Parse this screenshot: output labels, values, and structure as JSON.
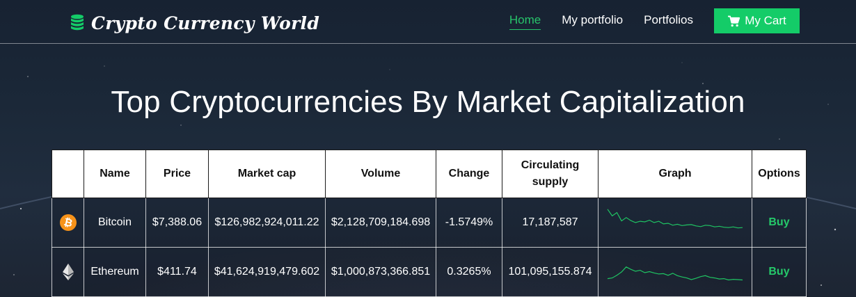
{
  "header": {
    "brand": "Crypto Currency World",
    "nav": [
      {
        "label": "Home",
        "active": true
      },
      {
        "label": "My portfolio",
        "active": false
      },
      {
        "label": "Portfolios",
        "active": false
      }
    ],
    "cart_label": "My Cart",
    "accent_color": "#14cc68"
  },
  "title": "Top Cryptocurrencies By Market Capitalization",
  "table": {
    "columns": [
      "",
      "Name",
      "Price",
      "Market cap",
      "Volume",
      "Change",
      "Circulating supply",
      "Graph",
      "Options"
    ],
    "rows": [
      {
        "icon": "bitcoin-icon",
        "name": "Bitcoin",
        "price": "$7,388.06",
        "market_cap": "$126,982,924,011.22",
        "volume": "$2,128,709,184.698",
        "change": "-1.5749%",
        "change_direction": "negative",
        "supply": "17,187,587",
        "spark": [
          9,
          7,
          8,
          5.5,
          6.5,
          5.6,
          5,
          5.4,
          5.2,
          5.7,
          5,
          5.4,
          4.6,
          4.8,
          4.2,
          4.5,
          4.1,
          4.3,
          4.4,
          4,
          3.8,
          4.2,
          4.1,
          3.7,
          3.9,
          3.6,
          3.5,
          3.7,
          3.4,
          3.5
        ],
        "action": "Buy"
      },
      {
        "icon": "ethereum-icon",
        "name": "Ethereum",
        "price": "$411.74",
        "market_cap": "$41,624,919,479.602",
        "volume": "$1,000,873,366.851",
        "change": "0.3265%",
        "change_direction": "positive",
        "supply": "101,095,155.874",
        "spark": [
          3,
          3.2,
          4,
          5,
          6.5,
          5.8,
          5.2,
          5.5,
          4.8,
          5.1,
          4.7,
          4.4,
          4.5,
          4,
          4.6,
          3.9,
          3.5,
          3.2,
          2.7,
          3.1,
          3.6,
          3.9,
          3.4,
          3.2,
          2.9,
          3,
          2.6,
          2.8,
          2.7,
          2.6
        ],
        "action": "Buy"
      }
    ]
  }
}
